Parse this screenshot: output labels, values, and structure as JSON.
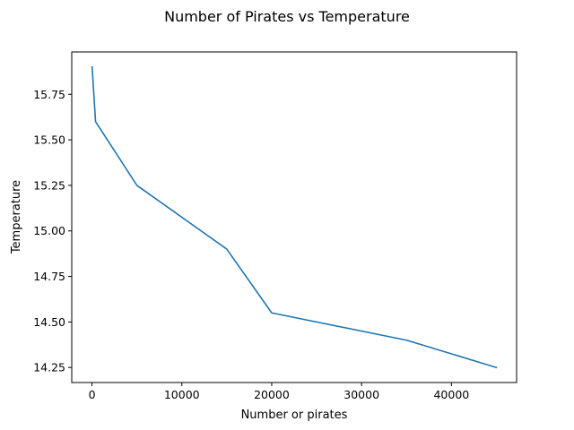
{
  "chart_data": {
    "type": "line",
    "title": "Number of Pirates vs Temperature",
    "xlabel": "Number or pirates",
    "ylabel": "Temperature",
    "x": [
      45000,
      35000,
      20000,
      15000,
      5000,
      400,
      17
    ],
    "series": [
      {
        "values": [
          14.25,
          14.4,
          14.55,
          14.9,
          15.25,
          15.6,
          15.9
        ],
        "color": "#1f77b4"
      }
    ],
    "xlim": [
      -2250,
      47250
    ],
    "ylim": [
      14.1675,
      15.9825
    ],
    "x_ticks": [
      0,
      10000,
      20000,
      30000,
      40000
    ],
    "x_tick_labels": [
      "0",
      "10000",
      "20000",
      "30000",
      "40000"
    ],
    "y_ticks": [
      14.25,
      14.5,
      14.75,
      15.0,
      15.25,
      15.5,
      15.75
    ],
    "y_tick_labels": [
      "14.25",
      "14.50",
      "14.75",
      "15.00",
      "15.25",
      "15.50",
      "15.75"
    ],
    "grid": false,
    "legend": "none"
  }
}
